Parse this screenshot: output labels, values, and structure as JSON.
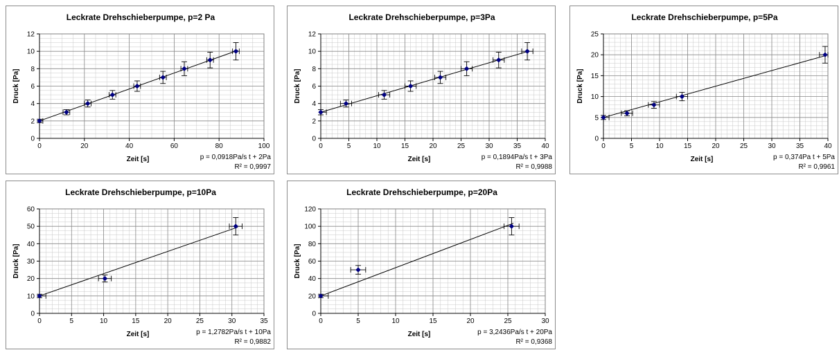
{
  "chart_data": [
    {
      "type": "scatter",
      "title": "Leckrate Drehschieberpumpe, p=2 Pa",
      "xlabel": "Zeit [s]",
      "ylabel": "Druck [Pa]",
      "xlim": [
        0,
        100
      ],
      "ylim": [
        0,
        12
      ],
      "xstep": 20,
      "ystep": 2,
      "xminor": 5,
      "yminor": 0.5,
      "grid": true,
      "point_color": "#000080",
      "x": [
        0,
        12,
        21.5,
        32.5,
        43.5,
        55,
        64.5,
        76,
        87.5
      ],
      "y": [
        2,
        3,
        4,
        5,
        6,
        7,
        8,
        9,
        10
      ],
      "xerr": 1.5,
      "yerr": [
        0.2,
        0.3,
        0.4,
        0.5,
        0.6,
        0.7,
        0.8,
        0.9,
        1.0
      ],
      "trendline": {
        "slope": 0.0918,
        "intercept": 2
      },
      "annotation": [
        "p = 0,0918Pa/s t + 2Pa",
        "R² = 0,9997"
      ]
    },
    {
      "type": "scatter",
      "title": "Leckrate Drehschieberpumpe, p=3Pa",
      "xlabel": "Zeit [s]",
      "ylabel": "Druck [Pa]",
      "xlim": [
        0,
        40
      ],
      "ylim": [
        0,
        12
      ],
      "xstep": 5,
      "ystep": 2,
      "xminor": 1,
      "yminor": 0.5,
      "grid": true,
      "point_color": "#000080",
      "x": [
        0,
        4.5,
        11.3,
        16,
        21.3,
        26,
        31.7,
        36.8
      ],
      "y": [
        3,
        4,
        5,
        6,
        7,
        8,
        9,
        10
      ],
      "xerr": 1.0,
      "yerr": [
        0.3,
        0.4,
        0.5,
        0.6,
        0.7,
        0.8,
        0.9,
        1.0
      ],
      "trendline": {
        "slope": 0.1894,
        "intercept": 3
      },
      "annotation": [
        "p = 0,1894Pa/s t + 3Pa",
        "R² = 0,9988"
      ]
    },
    {
      "type": "scatter",
      "title": "Leckrate Drehschieberpumpe, p=5Pa",
      "xlabel": "Zeit [s]",
      "ylabel": "Druck [Pa]",
      "xlim": [
        0,
        40
      ],
      "ylim": [
        0,
        25
      ],
      "xstep": 5,
      "ystep": 5,
      "xminor": 1,
      "yminor": 1,
      "grid": true,
      "point_color": "#000080",
      "x": [
        0,
        4.2,
        9,
        14,
        39.5
      ],
      "y": [
        5,
        6,
        8,
        10,
        20
      ],
      "xerr": 1.0,
      "yerr": [
        0.5,
        0.6,
        0.8,
        1.0,
        2.0
      ],
      "trendline": {
        "slope": 0.374,
        "intercept": 5
      },
      "annotation": [
        "p = 0,374Pa t + 5Pa",
        "R² = 0,9961"
      ]
    },
    {
      "type": "scatter",
      "title": "Leckrate Drehschieberpumpe, p=10Pa",
      "xlabel": "Zeit [s]",
      "ylabel": "Druck [Pa]",
      "xlim": [
        0,
        35
      ],
      "ylim": [
        0,
        60
      ],
      "xstep": 5,
      "ystep": 10,
      "xminor": 1,
      "yminor": 2.5,
      "grid": true,
      "point_color": "#000080",
      "x": [
        0,
        10.2,
        30.6
      ],
      "y": [
        10,
        20,
        50
      ],
      "xerr": 1.0,
      "yerr": [
        1,
        2,
        5
      ],
      "trendline": {
        "slope": 1.2782,
        "intercept": 10
      },
      "annotation": [
        "p = 1,2782Pa/s t + 10Pa",
        "R² = 0,9882"
      ]
    },
    {
      "type": "scatter",
      "title": "Leckrate Drehschieberpumpe, p=20Pa",
      "xlabel": "Zeit [s]",
      "ylabel": "Druck [Pa]",
      "xlim": [
        0,
        30
      ],
      "ylim": [
        0,
        120
      ],
      "xstep": 5,
      "ystep": 20,
      "xminor": 1,
      "yminor": 5,
      "grid": true,
      "point_color": "#000080",
      "x": [
        0,
        5,
        25.5
      ],
      "y": [
        20,
        50,
        100
      ],
      "xerr": 1.0,
      "yerr": [
        2,
        5,
        10
      ],
      "trendline": {
        "slope": 3.2436,
        "intercept": 20
      },
      "annotation": [
        "p = 3,2436Pa/s t + 20Pa",
        "R² = 0,9368"
      ]
    }
  ]
}
